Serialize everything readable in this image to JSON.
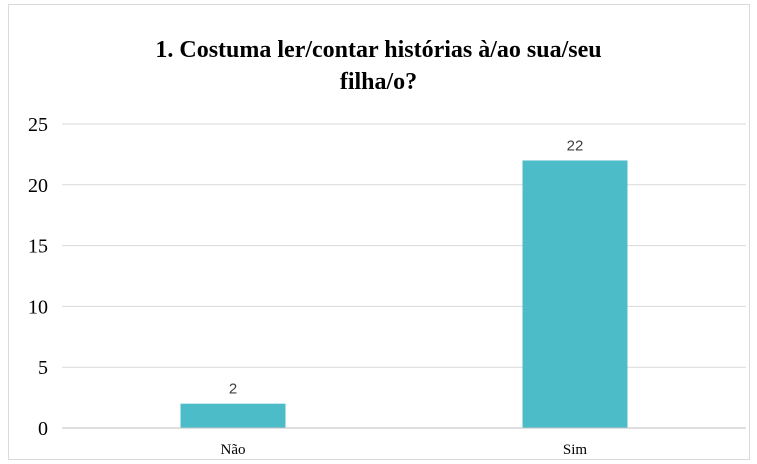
{
  "chart_data": {
    "type": "bar",
    "title_lines": [
      "1. Costuma ler/contar histórias à/ao sua/seu",
      "filha/o?"
    ],
    "categories": [
      "Não",
      "Sim"
    ],
    "values": [
      2,
      22
    ],
    "ylim": [
      0,
      25
    ],
    "yticks": [
      0,
      5,
      10,
      15,
      20,
      25
    ],
    "grid": true,
    "data_labels": true,
    "bar_color": "#4BBCC8",
    "grid_color": "#d9d9d9",
    "axis_color": "#bfbfbf"
  }
}
